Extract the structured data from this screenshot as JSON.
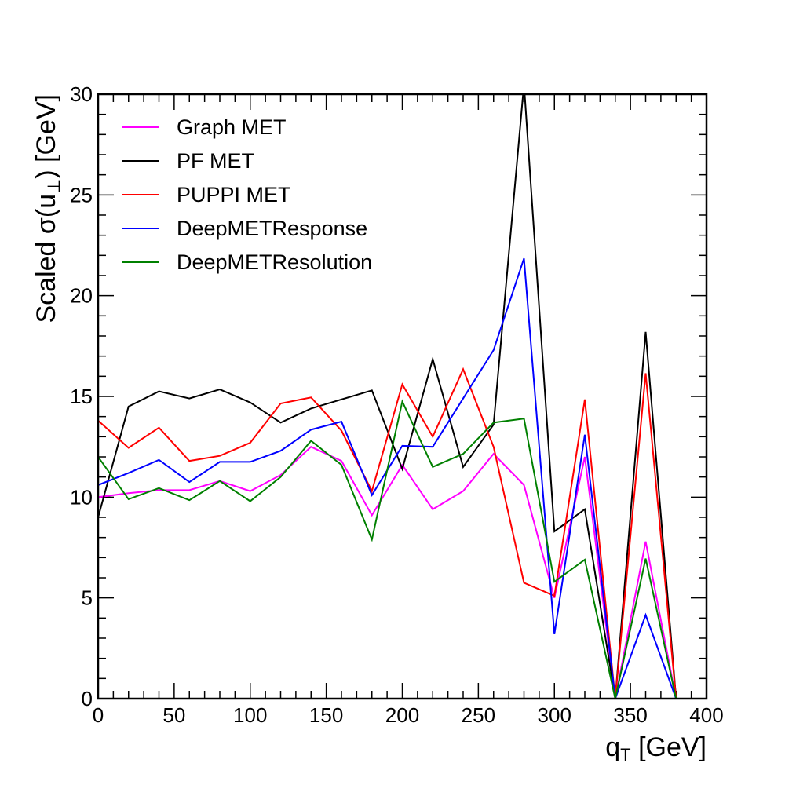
{
  "chart_data": {
    "type": "line",
    "title": "",
    "xlabel": "q_T [GeV]",
    "xlabel_main": "q",
    "xlabel_sub": "T",
    "xlabel_suffix": " [GeV]",
    "ylabel": "Scaled σ(u_⊥) [GeV]",
    "ylabel_prefix": "Scaled σ(u",
    "ylabel_sub": "⊥",
    "ylabel_suffix": ") [GeV]",
    "xlim": [
      0,
      400
    ],
    "ylim": [
      0,
      30
    ],
    "xticks": [
      0,
      50,
      100,
      150,
      200,
      250,
      300,
      350,
      400
    ],
    "yticks": [
      0,
      5,
      10,
      15,
      20,
      25,
      30
    ],
    "grid": false,
    "legend_position": "top-left",
    "x": [
      0,
      20,
      40,
      60,
      80,
      100,
      120,
      140,
      160,
      180,
      200,
      220,
      240,
      260,
      280,
      300,
      320,
      340,
      360,
      380
    ],
    "series": [
      {
        "name": "Graph MET",
        "color": "#ff00ff",
        "values": [
          10.0,
          10.2,
          10.35,
          10.35,
          10.8,
          10.3,
          11.1,
          12.5,
          11.8,
          9.1,
          11.6,
          9.4,
          10.3,
          12.15,
          10.6,
          5.0,
          12.0,
          0,
          7.8,
          0
        ]
      },
      {
        "name": "PF MET",
        "color": "#000000",
        "values": [
          9.0,
          14.5,
          15.25,
          14.9,
          15.35,
          14.7,
          13.7,
          14.4,
          14.85,
          15.3,
          11.4,
          16.85,
          11.5,
          13.6,
          30.5,
          8.3,
          9.4,
          0,
          18.2,
          0
        ]
      },
      {
        "name": "PUPPI MET",
        "color": "#ff0000",
        "values": [
          13.8,
          12.45,
          13.45,
          11.8,
          12.05,
          12.7,
          14.65,
          14.95,
          13.3,
          10.3,
          15.6,
          13.0,
          16.35,
          12.5,
          5.75,
          5.1,
          14.85,
          0,
          16.15,
          0
        ]
      },
      {
        "name": "DeepMETResponse",
        "color": "#0000ff",
        "values": [
          10.6,
          11.2,
          11.85,
          10.75,
          11.75,
          11.75,
          12.3,
          13.35,
          13.75,
          10.1,
          12.55,
          12.5,
          14.9,
          17.3,
          21.85,
          3.2,
          13.1,
          0,
          4.15,
          0
        ]
      },
      {
        "name": "DeepMETResolution",
        "color": "#008000",
        "values": [
          12.0,
          9.9,
          10.45,
          9.85,
          10.8,
          9.8,
          11.0,
          12.8,
          11.6,
          7.9,
          14.75,
          11.5,
          12.15,
          13.7,
          13.9,
          5.8,
          6.9,
          0,
          6.95,
          0
        ]
      }
    ]
  }
}
